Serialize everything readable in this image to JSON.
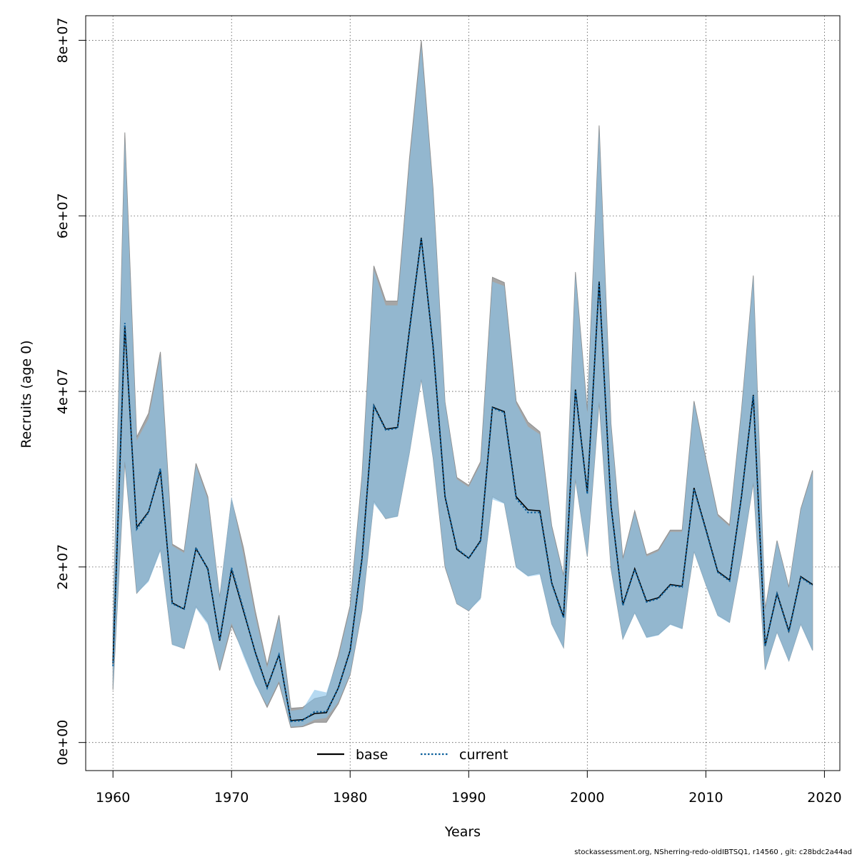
{
  "chart_data": {
    "type": "line",
    "title": "",
    "xlabel": "Years",
    "ylabel": "Recruits (age 0)",
    "xlim": [
      1957.7,
      2021.3
    ],
    "ylim": [
      -3200000,
      82800000
    ],
    "x_ticks": [
      1960,
      1970,
      1980,
      1990,
      2000,
      2010,
      2020
    ],
    "x_tick_labels": [
      "1960",
      "1970",
      "1980",
      "1990",
      "2000",
      "2010",
      "2020"
    ],
    "y_ticks": [
      0,
      20000000,
      40000000,
      60000000,
      80000000
    ],
    "y_tick_labels": [
      "0e+00",
      "2e+07",
      "4e+07",
      "6e+07",
      "8e+07"
    ],
    "grid": true,
    "legend_position": "bottom",
    "colors": {
      "base_band": "#a6a6a6",
      "current_band": "#87c1e8",
      "base_line": "#000000",
      "current_line": "#0b5f9b"
    },
    "x": [
      1960,
      1961,
      1962,
      1963,
      1964,
      1965,
      1966,
      1967,
      1968,
      1969,
      1970,
      1971,
      1972,
      1973,
      1974,
      1975,
      1976,
      1977,
      1978,
      1979,
      1980,
      1981,
      1982,
      1983,
      1984,
      1985,
      1986,
      1987,
      1988,
      1989,
      1990,
      1991,
      1992,
      1993,
      1994,
      1995,
      1996,
      1997,
      1998,
      1999,
      2000,
      2001,
      2002,
      2003,
      2004,
      2005,
      2006,
      2007,
      2008,
      2009,
      2010,
      2011,
      2012,
      2013,
      2014,
      2015,
      2016,
      2017,
      2018,
      2019
    ],
    "series": [
      {
        "name": "base",
        "values": [
          9000000,
          47500000,
          24500000,
          26300000,
          31000000,
          15900000,
          15200000,
          22100000,
          19800000,
          11600000,
          19700000,
          15000000,
          10300000,
          6300000,
          10000000,
          2500000,
          2600000,
          3300000,
          3400000,
          6200000,
          10500000,
          21000000,
          38400000,
          35700000,
          35900000,
          47000000,
          57500000,
          45000000,
          28000000,
          22000000,
          21000000,
          23000000,
          38200000,
          37700000,
          28000000,
          26500000,
          26400000,
          18200000,
          14300000,
          40200000,
          28500000,
          52500000,
          27000000,
          15700000,
          19800000,
          16100000,
          16500000,
          18000000,
          17800000,
          29000000,
          24300000,
          19500000,
          18500000,
          28000000,
          39600000,
          11000000,
          17000000,
          12700000,
          18900000,
          18000000
        ],
        "lower": [
          6000000,
          32000000,
          17000000,
          18500000,
          22000000,
          11200000,
          10700000,
          15500000,
          13700000,
          8200000,
          13300000,
          10200000,
          6800000,
          4000000,
          6800000,
          1700000,
          1800000,
          2300000,
          2300000,
          4400000,
          7700000,
          15000000,
          27500000,
          25500000,
          25800000,
          33000000,
          41400000,
          32400000,
          20000000,
          15800000,
          15000000,
          16500000,
          28000000,
          27300000,
          20000000,
          19000000,
          19300000,
          13500000,
          10800000,
          30000000,
          21200000,
          38800000,
          19800000,
          11800000,
          14800000,
          12000000,
          12300000,
          13500000,
          13000000,
          21800000,
          18000000,
          14500000,
          13700000,
          21000000,
          29600000,
          8300000,
          12600000,
          9300000,
          13500000,
          10500000
        ],
        "upper": [
          13000000,
          69500000,
          34800000,
          37500000,
          44500000,
          22600000,
          21800000,
          31800000,
          28000000,
          16500000,
          27700000,
          22200000,
          15000000,
          8800000,
          14500000,
          3900000,
          4000000,
          5000000,
          5300000,
          9900000,
          15600000,
          30400000,
          54300000,
          50300000,
          50300000,
          66500000,
          80000000,
          63000000,
          38800000,
          30200000,
          29300000,
          32000000,
          53000000,
          52400000,
          38900000,
          36500000,
          35400000,
          24700000,
          19000000,
          53600000,
          37800000,
          70300000,
          36300000,
          21000000,
          26400000,
          21400000,
          22000000,
          24200000,
          24200000,
          38900000,
          32400000,
          26000000,
          24800000,
          37800000,
          53200000,
          15200000,
          23000000,
          17700000,
          26600000,
          31000000
        ]
      },
      {
        "name": "current",
        "values": [
          8700000,
          47800000,
          24300000,
          26200000,
          31200000,
          15800000,
          15200000,
          22200000,
          19700000,
          11700000,
          19900000,
          15200000,
          10200000,
          6200000,
          10000000,
          2400000,
          2500000,
          3500000,
          3500000,
          6200000,
          10400000,
          20800000,
          38300000,
          35600000,
          35800000,
          46800000,
          57400000,
          45200000,
          28100000,
          22100000,
          21000000,
          22900000,
          38100000,
          37600000,
          27800000,
          26200000,
          26200000,
          18100000,
          14200000,
          40100000,
          28300000,
          52400000,
          26900000,
          15600000,
          19700000,
          16000000,
          16400000,
          17900000,
          17700000,
          28900000,
          24200000,
          19400000,
          18400000,
          27900000,
          39500000,
          11000000,
          16900000,
          12600000,
          18800000,
          17900000
        ],
        "lower": [
          6000000,
          32000000,
          17000000,
          18300000,
          21800000,
          11100000,
          10700000,
          15300000,
          13400000,
          8400000,
          13600000,
          9800000,
          6600000,
          4200000,
          7000000,
          1800000,
          1900000,
          2600000,
          2800000,
          4600000,
          7800000,
          15000000,
          27200000,
          25500000,
          25700000,
          32800000,
          41300000,
          32300000,
          20100000,
          15800000,
          15000000,
          16300000,
          27700000,
          27200000,
          19900000,
          18900000,
          19100000,
          13400000,
          10700000,
          29900000,
          21100000,
          38700000,
          19700000,
          11700000,
          14700000,
          11900000,
          12200000,
          13400000,
          12900000,
          21700000,
          17900000,
          14400000,
          13600000,
          20900000,
          29500000,
          8200000,
          12500000,
          9200000,
          13400000,
          10400000
        ],
        "upper": [
          12800000,
          68800000,
          34400000,
          36900000,
          44000000,
          22400000,
          21600000,
          31500000,
          27700000,
          16600000,
          28000000,
          21400000,
          14400000,
          8500000,
          14200000,
          3600000,
          3800000,
          6000000,
          5700000,
          9600000,
          15300000,
          30200000,
          53800000,
          49800000,
          49800000,
          66000000,
          79400000,
          62700000,
          38700000,
          30000000,
          29100000,
          31700000,
          52500000,
          52000000,
          38600000,
          36000000,
          35100000,
          24500000,
          18900000,
          53300000,
          37500000,
          69900000,
          36100000,
          20800000,
          26200000,
          21200000,
          21800000,
          24000000,
          24000000,
          38700000,
          32200000,
          25800000,
          24600000,
          37600000,
          53000000,
          15100000,
          22900000,
          17600000,
          26500000,
          30800000
        ]
      }
    ]
  },
  "footer_text": "stockassessment.org, NSherring-redo-oldIBTSQ1, r14560 , git: c28bdc2a44ad"
}
